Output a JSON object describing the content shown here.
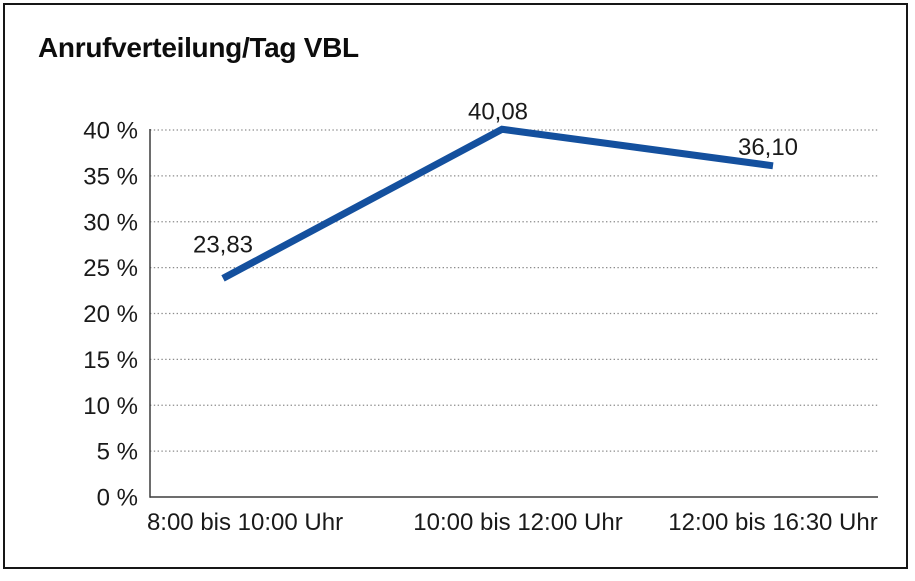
{
  "title": "Anrufverteilung/Tag VBL",
  "chart_data": {
    "type": "line",
    "title": "Anrufverteilung/Tag VBL",
    "categories": [
      "8:00 bis 10:00 Uhr",
      "10:00 bis 12:00 Uhr",
      "12:00 bis 16:30 Uhr"
    ],
    "values": [
      23.83,
      40.08,
      36.1
    ],
    "value_labels": [
      "23,83",
      "40,08",
      "36,10"
    ],
    "xlabel": "",
    "ylabel": "",
    "ylim": [
      0,
      40
    ],
    "ytick_step": 5,
    "ytick_labels": [
      "0 %",
      "5 %",
      "10 %",
      "15 %",
      "20 %",
      "25 %",
      "30 %",
      "35 %",
      "40 %"
    ],
    "grid": "horizontal-dotted",
    "legend": "none",
    "line_color": "#14509E"
  },
  "colors": {
    "line": "#14509E",
    "grid": "#8c8c8c",
    "axis": "#3d3d3d",
    "text": "#1a1a1a",
    "frame_border": "#161616",
    "background": "#ffffff"
  }
}
